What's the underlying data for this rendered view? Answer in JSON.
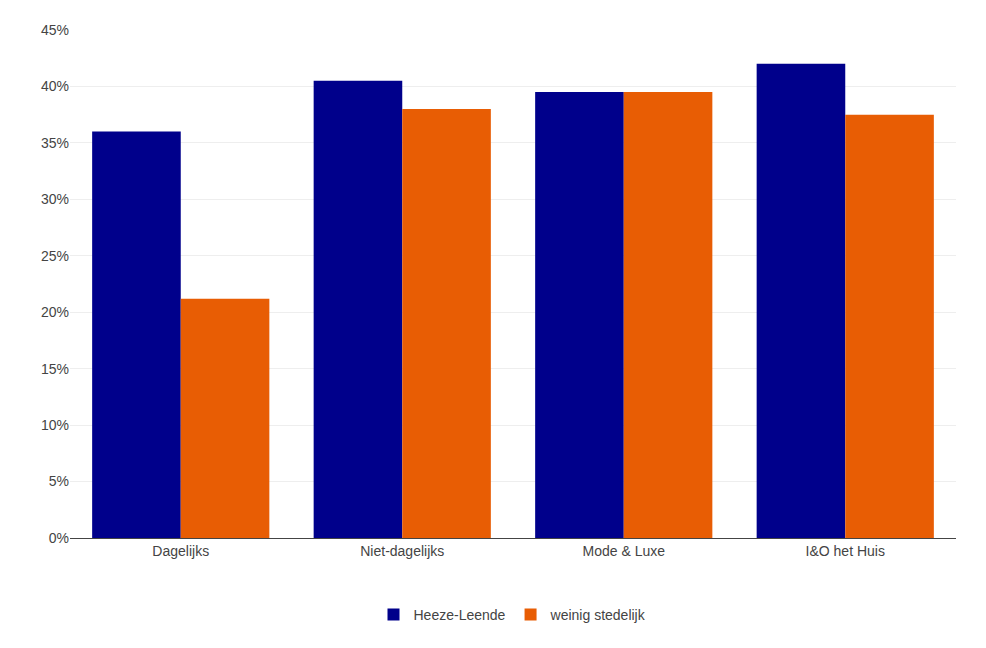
{
  "chart_data": {
    "type": "bar",
    "categories": [
      "Dagelijks",
      "Niet-dagelijks",
      "Mode & Luxe",
      "I&O het Huis"
    ],
    "series": [
      {
        "name": "Heeze-Leende",
        "color": "#00008B",
        "values": [
          0.36,
          0.405,
          0.395,
          0.42
        ]
      },
      {
        "name": "weinig stedelijk",
        "color": "#E85D04",
        "values": [
          0.212,
          0.38,
          0.395,
          0.375
        ]
      }
    ],
    "ylim": [
      0,
      0.45
    ],
    "yticks": [
      {
        "value": 0.0,
        "label": "0%"
      },
      {
        "value": 0.05,
        "label": "5%"
      },
      {
        "value": 0.1,
        "label": "10%"
      },
      {
        "value": 0.15,
        "label": "15%"
      },
      {
        "value": 0.2,
        "label": "20%"
      },
      {
        "value": 0.25,
        "label": "25%"
      },
      {
        "value": 0.3,
        "label": "30%"
      },
      {
        "value": 0.35,
        "label": "35%"
      },
      {
        "value": 0.4,
        "label": "40%"
      },
      {
        "value": 0.45,
        "label": "45%"
      }
    ],
    "grid": true,
    "legend": "bottom"
  }
}
